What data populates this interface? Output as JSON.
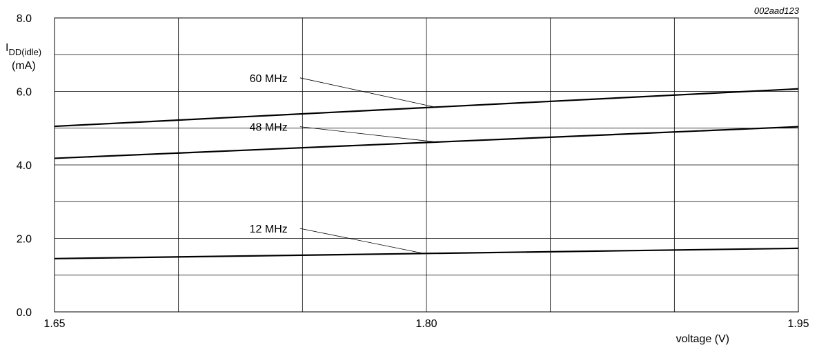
{
  "figure_code": "002aad123",
  "chart_data": {
    "type": "line",
    "ylabel": "I",
    "ylabel_sub": "DD(idle)",
    "ylabel_unit": "(mA)",
    "xlabel": "voltage (V)",
    "xlim": [
      1.65,
      1.95
    ],
    "ylim": [
      0.0,
      8.0
    ],
    "x_ticks": [
      {
        "value": 1.65,
        "label": "1.65"
      },
      {
        "value": 1.8,
        "label": "1.80"
      },
      {
        "value": 1.95,
        "label": "1.95"
      }
    ],
    "y_ticks": [
      {
        "value": 0.0,
        "label": "0.0"
      },
      {
        "value": 2.0,
        "label": "2.0"
      },
      {
        "value": 4.0,
        "label": "4.0"
      },
      {
        "value": 6.0,
        "label": "6.0"
      },
      {
        "value": 8.0,
        "label": "8.0"
      }
    ],
    "grid_x": [
      1.65,
      1.7,
      1.75,
      1.8,
      1.85,
      1.9,
      1.95
    ],
    "grid_y": [
      0,
      1,
      2,
      3,
      4,
      5,
      6,
      7,
      8
    ],
    "grid": true,
    "series": [
      {
        "name": "60 MHz",
        "x": [
          1.65,
          1.95
        ],
        "y": [
          5.05,
          6.07
        ],
        "label_at": {
          "x": 1.744,
          "y": 6.37
        },
        "leader_to": {
          "x": 1.803,
          "y": 5.58
        }
      },
      {
        "name": "48 MHz",
        "x": [
          1.65,
          1.95
        ],
        "y": [
          4.18,
          5.04
        ],
        "label_at": {
          "x": 1.744,
          "y": 5.04
        },
        "leader_to": {
          "x": 1.803,
          "y": 4.63
        }
      },
      {
        "name": "12 MHz",
        "x": [
          1.65,
          1.95
        ],
        "y": [
          1.45,
          1.73
        ],
        "label_at": {
          "x": 1.744,
          "y": 2.27
        },
        "leader_to": {
          "x": 1.799,
          "y": 1.59
        }
      }
    ]
  }
}
